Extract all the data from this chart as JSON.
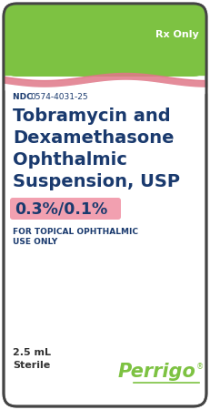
{
  "bg_color": "#ffffff",
  "border_color": "#444444",
  "green_color": "#7dc242",
  "pink_wave_color": "#e07888",
  "pink_highlight_bg": "#f2a0b0",
  "rx_only_text": "Rx Only",
  "rx_only_color": "#ffffff",
  "ndc_label": "NDC ",
  "ndc_number": "0574-4031-25",
  "ndc_color": "#1a3a6e",
  "title_line1": "Tobramycin and",
  "title_line2": "Dexamethasone",
  "title_line3": "Ophthalmic",
  "title_line4": "Suspension, USP",
  "title_color": "#1a3a6e",
  "concentration_text": "0.3%/0.1%",
  "concentration_color": "#1a3a6e",
  "topical_line1": "FOR TOPICAL OPHTHALMIC",
  "topical_line2": "USE ONLY",
  "topical_color": "#1a3a6e",
  "volume_text": "2.5 mL",
  "sterile_text": "Sterile",
  "bottom_text_color": "#333333",
  "perrigo_text": "Perrigo",
  "perrigo_sup": "®",
  "perrigo_color": "#7dc242"
}
